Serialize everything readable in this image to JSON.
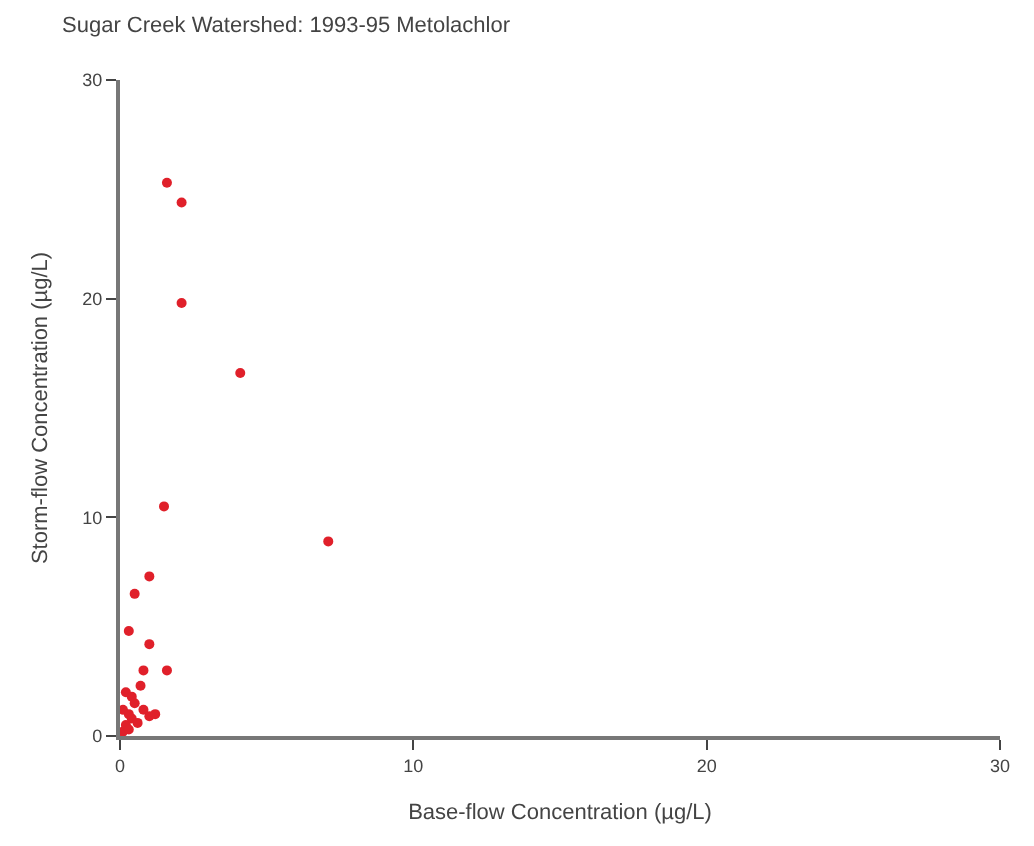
{
  "chart_data": {
    "type": "scatter",
    "title": "Sugar Creek Watershed: 1993-95 Metolachlor",
    "xlabel": "Base-flow Concentration (µg/L)",
    "ylabel": "Storm-flow Concentration (µg/L)",
    "x": [
      1.6,
      2.1,
      2.1,
      4.1,
      1.5,
      7.1,
      1.0,
      0.5,
      0.3,
      1.0,
      1.6,
      0.8,
      0.1,
      0.2,
      0.3,
      0.4,
      0.5,
      0.6,
      0.2,
      0.8,
      1.0,
      0.3,
      0.1,
      0.7,
      0.4,
      1.2
    ],
    "values": [
      25.3,
      24.4,
      19.8,
      16.6,
      10.5,
      8.9,
      7.3,
      6.5,
      4.8,
      4.2,
      3.0,
      3.0,
      0.2,
      0.5,
      1.0,
      0.8,
      1.5,
      0.6,
      2.0,
      1.2,
      0.9,
      0.3,
      1.2,
      2.3,
      1.8,
      1.0
    ],
    "color": "#e0202a",
    "marker": "circle",
    "xlim": [
      0,
      30
    ],
    "ylim": [
      0,
      30
    ],
    "xticks": [
      0,
      10,
      20,
      30
    ],
    "yticks": [
      0,
      10,
      20,
      30
    ]
  }
}
